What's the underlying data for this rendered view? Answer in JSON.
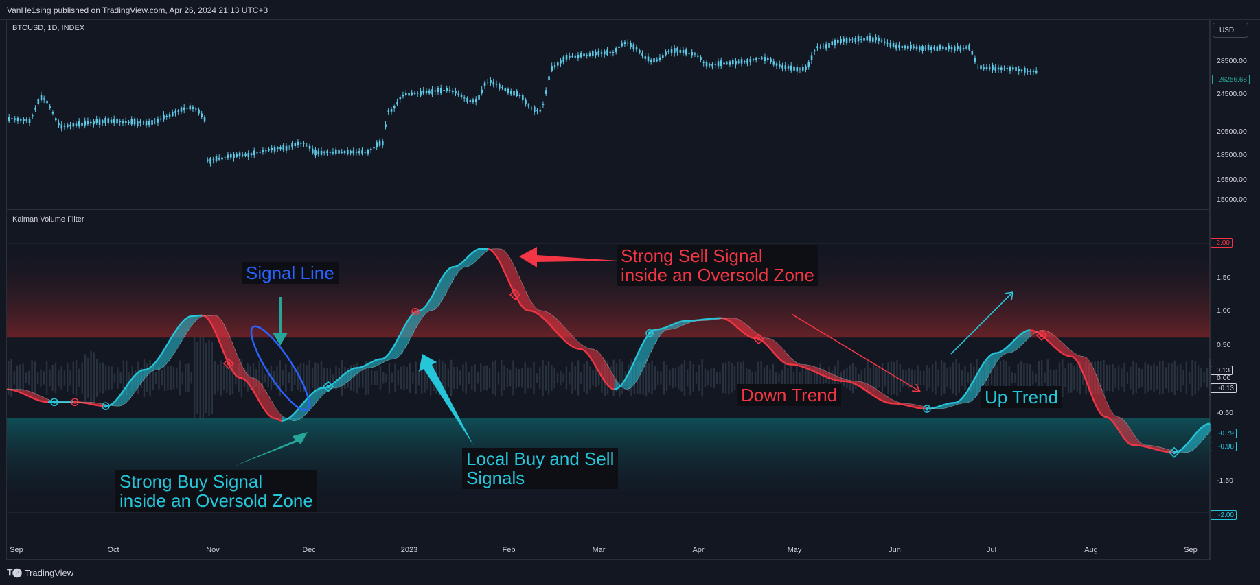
{
  "header": {
    "publisher_line": "VanHe1sing published on TradingView.com, Apr 26, 2024 21:13 UTC+3"
  },
  "price_pane": {
    "symbol": "BTCUSD, 1D, INDEX",
    "currency_button": "USD",
    "y_ticks": [
      "28500.00",
      "24500.00",
      "20500.00",
      "18500.00",
      "16500.00",
      "15000.00"
    ],
    "last_price_badge": "26256.68",
    "colors": {
      "candle": "#5ec8e5",
      "badge": "#26a69a"
    }
  },
  "indicator_pane": {
    "name": "Kalman Volume Filter",
    "y_ticks": [
      "1.50",
      "1.00",
      "0.50",
      "0.00",
      "-0.50",
      "-1.50"
    ],
    "badges": {
      "top_level": "2.00",
      "val_a": "0.13",
      "val_b": "-0.13",
      "val_c": "-0.79",
      "val_d": "-0.98",
      "bottom_level": "-2.00"
    },
    "colors": {
      "bull": "#26c6da",
      "bear": "#f23645",
      "signal": "#2962ff",
      "overbought_zone": "#5a1e24",
      "oversold_zone": "#0e4950"
    }
  },
  "x_axis": {
    "labels": [
      "Sep",
      "Oct",
      "Nov",
      "Dec",
      "2023",
      "Feb",
      "Mar",
      "Apr",
      "May",
      "Jun",
      "Jul",
      "Aug",
      "Sep"
    ]
  },
  "annotations": {
    "signal_line": "Signal Line",
    "strong_sell": "Strong Sell Signal\ninside an Oversold Zone",
    "strong_buy": "Strong Buy Signal\ninside an Oversold Zone",
    "local_signals": "Local Buy and Sell\nSignals",
    "down_trend": "Down Trend",
    "up_trend": "Up Trend"
  },
  "footer": {
    "brand": "TradingView"
  }
}
